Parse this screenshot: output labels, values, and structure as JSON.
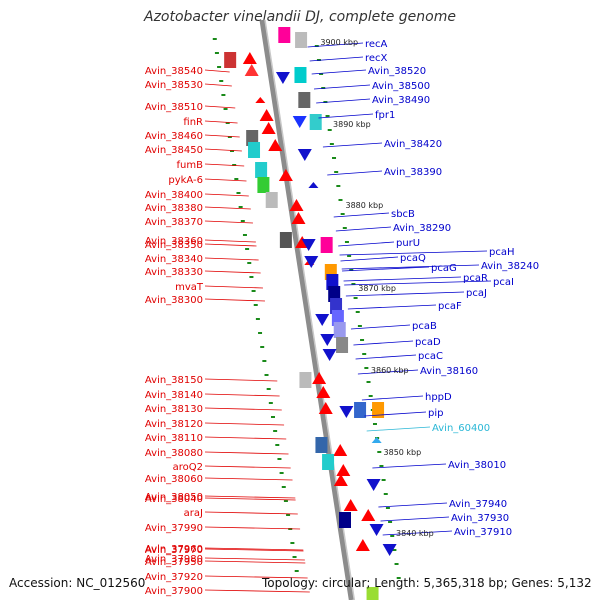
{
  "title": "Azotobacter vinelandii DJ, complete genome",
  "footer": {
    "accession": "Accession: NC_012560",
    "summary": "Topology: circular; Length: 5,365,318 bp; Genes: 5,132"
  },
  "colors": {
    "left_labels": "#e00000",
    "right_labels": "#0000cc",
    "rna_label": "#2ab7d6",
    "backbone": "#8c8c8c",
    "tick": "#1a8a1a"
  },
  "kbp_markers": [
    "3900 kbp",
    "3890 kbp",
    "3880 kbp",
    "3870 kbp",
    "3860 kbp",
    "3850 kbp",
    "3840 kbp"
  ],
  "left_genes": [
    "Avin_38540",
    "Avin_38530",
    "Avin_38510",
    "finR",
    "Avin_38460",
    "Avin_38450",
    "fumB",
    "pykA-6",
    "Avin_38400",
    "Avin_38380",
    "Avin_38370",
    "Avin_38360",
    "Avin_38350",
    "Avin_38340",
    "Avin_38330",
    "mvaT",
    "Avin_38300",
    "Avin_38150",
    "Avin_38140",
    "Avin_38130",
    "Avin_38120",
    "Avin_38110",
    "Avin_38080",
    "aroQ2",
    "Avin_38060",
    "Avin_38050",
    "Avin_38040",
    "araJ",
    "Avin_37990",
    "Avin_37970",
    "Avin_37980",
    "Avin_37960",
    "Avin_37950",
    "Avin_37920",
    "Avin_37900"
  ],
  "right_genes": [
    "recA",
    "recX",
    "Avin_38520",
    "Avin_38500",
    "Avin_38490",
    "fpr1",
    "Avin_38420",
    "Avin_38390",
    "sbcB",
    "Avin_38290",
    "purU",
    "pcaH",
    "pcaQ",
    "pcaG",
    "Avin_38240",
    "pcaR",
    "pcaI",
    "pcaJ",
    "pcaF",
    "pcaB",
    "pcaD",
    "pcaC",
    "Avin_38160",
    "hppD",
    "pip",
    "Avin_60400",
    "Avin_38010",
    "Avin_37940",
    "Avin_37930",
    "Avin_37910"
  ]
}
